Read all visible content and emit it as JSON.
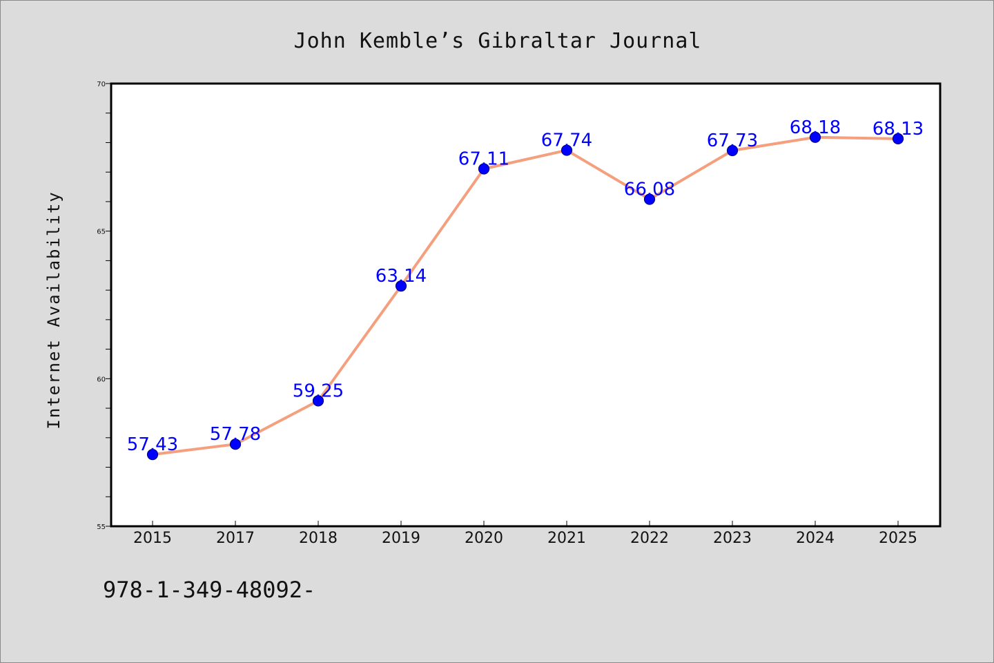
{
  "chart_data": {
    "type": "line",
    "title": "John Kemble’s Gibraltar Journal",
    "xlabel": "",
    "ylabel": "Internet Availability",
    "categories": [
      "2015",
      "2017",
      "2018",
      "2019",
      "2020",
      "2021",
      "2022",
      "2023",
      "2024",
      "2025"
    ],
    "series": [
      {
        "values": [
          57.43,
          57.78,
          59.25,
          63.14,
          67.11,
          67.74,
          66.08,
          67.73,
          68.18,
          68.13
        ],
        "value_labels": [
          "57.43",
          "57.78",
          "59.25",
          "63.14",
          "67.11",
          "67.74",
          "66.08",
          "67.73",
          "68.18",
          "68.13"
        ]
      }
    ],
    "ylim": [
      55,
      70
    ],
    "yticks_labeled": [
      "55",
      "60",
      "65",
      "70"
    ],
    "yticks_minor_step": 1,
    "grid": false,
    "legend": "none",
    "colors": {
      "line": "#f4a07e",
      "marker_fill": "#0000ff",
      "marker_edge": "#00008b",
      "data_label": "#0000ff",
      "plot_bg": "#ffffff",
      "page_bg": "#dcdcdc",
      "axes_frame": "#000000"
    }
  },
  "footer": {
    "text": "978-1-349-48092-"
  }
}
